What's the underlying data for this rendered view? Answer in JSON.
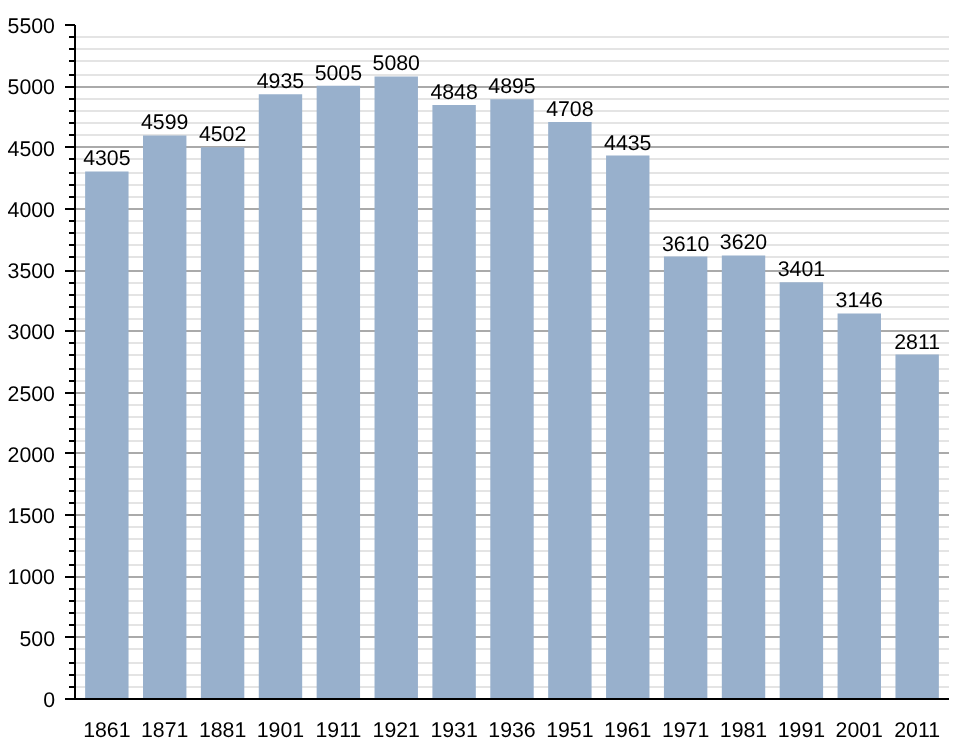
{
  "chart_data": {
    "type": "bar",
    "categories": [
      "1861",
      "1871",
      "1881",
      "1901",
      "1911",
      "1921",
      "1931",
      "1936",
      "1951",
      "1961",
      "1971",
      "1981",
      "1991",
      "2001",
      "2011"
    ],
    "values": [
      4305,
      4599,
      4502,
      4935,
      5005,
      5080,
      4848,
      4895,
      4708,
      4435,
      3610,
      3620,
      3401,
      3146,
      2811
    ],
    "color": "#98b0cc",
    "data_labels": true,
    "ylim": [
      0,
      5500
    ],
    "yticks": [
      0,
      500,
      1000,
      1500,
      2000,
      2500,
      3000,
      3500,
      4000,
      4500,
      5000,
      5500
    ],
    "grid": "y"
  }
}
